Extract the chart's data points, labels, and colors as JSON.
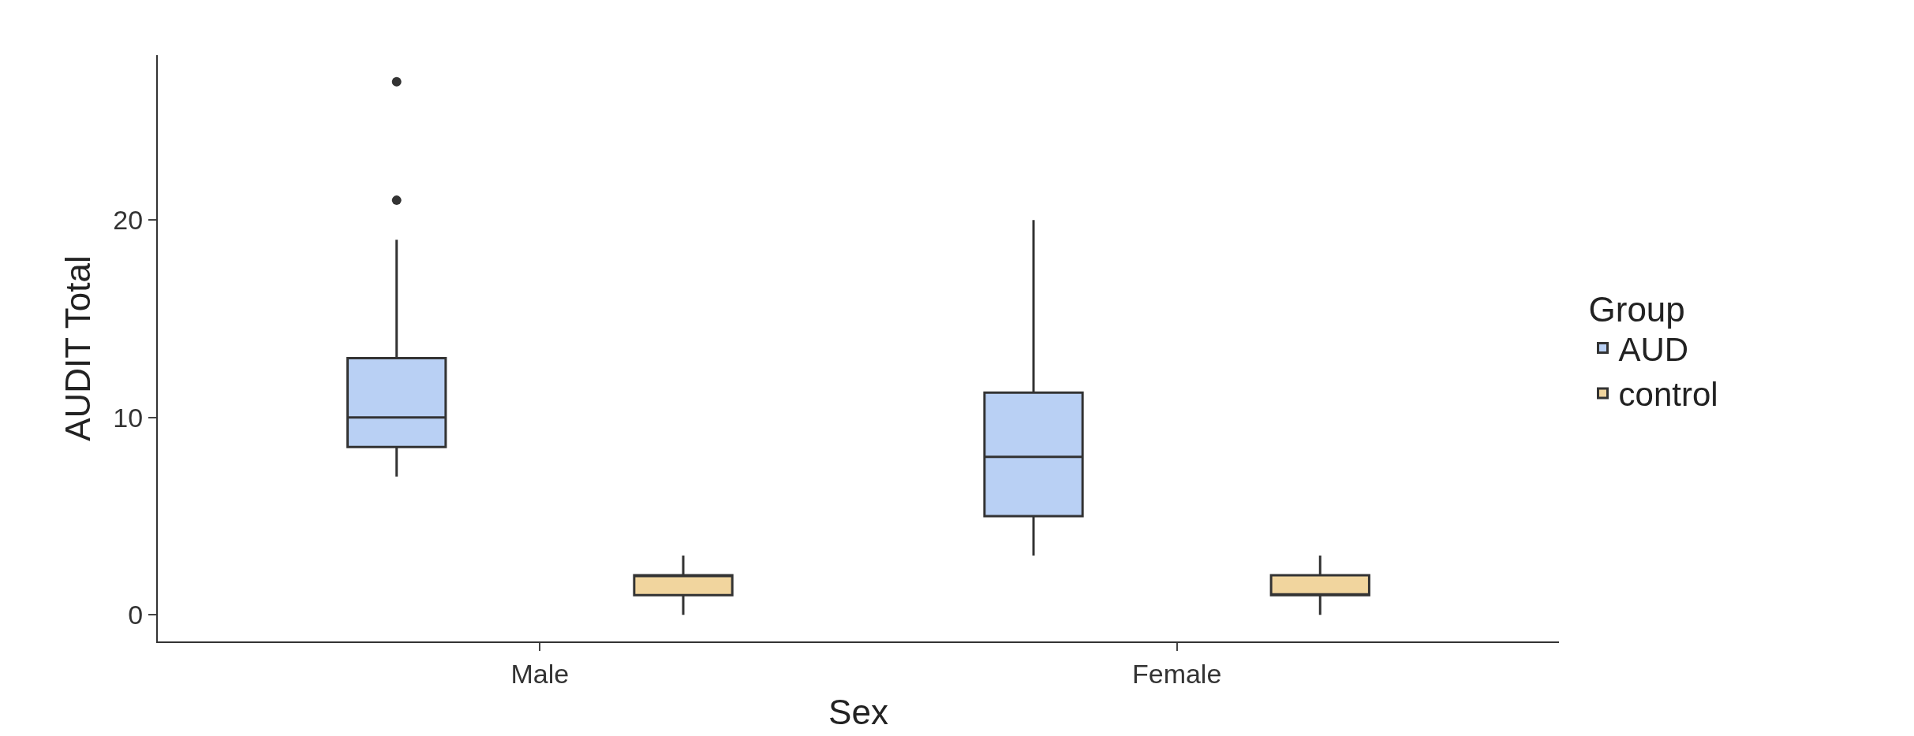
{
  "chart_data": {
    "type": "box",
    "xlabel": "Sex",
    "ylabel": "AUDIT Total",
    "legend_title": "Group",
    "legend": "right",
    "categories": [
      "Male",
      "Female"
    ],
    "ylim": [
      -1.35,
      28.35
    ],
    "yticks": [
      0,
      10,
      20
    ],
    "series": [
      {
        "name": "AUD",
        "color": "#b9d0f4",
        "boxes": [
          {
            "low": 7,
            "q1": 8.5,
            "median": 10,
            "q3": 13,
            "high": 19,
            "outliers": [
              21,
              27
            ]
          },
          {
            "low": 3,
            "q1": 5,
            "median": 8,
            "q3": 11.25,
            "high": 20
          }
        ]
      },
      {
        "name": "control",
        "color": "#f1d59e",
        "boxes": [
          {
            "low": 0,
            "q1": 1,
            "median": 2,
            "q3": 2,
            "high": 3
          },
          {
            "low": 0,
            "q1": 1,
            "median": 1,
            "q3": 2,
            "high": 3
          }
        ]
      }
    ]
  }
}
